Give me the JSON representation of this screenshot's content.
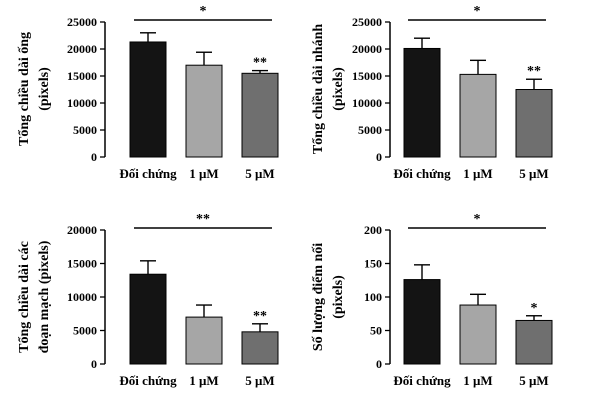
{
  "chart_data": [
    {
      "type": "bar",
      "title": "",
      "ylabel": [
        "Tổng chiều dài ống",
        "(pixels)"
      ],
      "categories": [
        "Đối chứng",
        "1 μM",
        "5 μM"
      ],
      "values": [
        21300,
        17000,
        15500
      ],
      "errors": [
        1700,
        2400,
        500
      ],
      "colors": [
        "#141414",
        "#a6a6a6",
        "#6f6f6f"
      ],
      "ylim": [
        0,
        25000
      ],
      "yticks": [
        0,
        5000,
        10000,
        15000,
        20000,
        25000
      ],
      "bar_annotations": [
        "",
        "",
        "**"
      ],
      "bracket": {
        "from": 0,
        "to": 2,
        "label": "*"
      },
      "grid": false
    },
    {
      "type": "bar",
      "title": "",
      "ylabel": [
        "Tổng chiều dài nhánh",
        "(pixels)"
      ],
      "categories": [
        "Đối chứng",
        "1 μM",
        "5 μM"
      ],
      "values": [
        20100,
        15300,
        12500
      ],
      "errors": [
        1900,
        2600,
        1900
      ],
      "colors": [
        "#141414",
        "#a6a6a6",
        "#6f6f6f"
      ],
      "ylim": [
        0,
        25000
      ],
      "yticks": [
        0,
        5000,
        10000,
        15000,
        20000,
        25000
      ],
      "bar_annotations": [
        "",
        "",
        "**"
      ],
      "bracket": {
        "from": 0,
        "to": 2,
        "label": "*"
      },
      "grid": false
    },
    {
      "type": "bar",
      "title": "",
      "ylabel": [
        "Tổng chiều dài các",
        "đoạn mạch (pixels)"
      ],
      "categories": [
        "Đối chứng",
        "1 μM",
        "5 μM"
      ],
      "values": [
        13400,
        7000,
        4800
      ],
      "errors": [
        2000,
        1800,
        1200
      ],
      "colors": [
        "#141414",
        "#a6a6a6",
        "#6f6f6f"
      ],
      "ylim": [
        0,
        20000
      ],
      "yticks": [
        0,
        5000,
        10000,
        15000,
        20000
      ],
      "bar_annotations": [
        "",
        "",
        "**"
      ],
      "bracket": {
        "from": 0,
        "to": 2,
        "label": "**"
      },
      "grid": false
    },
    {
      "type": "bar",
      "title": "",
      "ylabel": [
        "Số lượng điểm nối",
        "(pixels)"
      ],
      "categories": [
        "Đối chứng",
        "1 μM",
        "5 μM"
      ],
      "values": [
        126,
        88,
        65
      ],
      "errors": [
        22,
        16,
        7
      ],
      "colors": [
        "#141414",
        "#a6a6a6",
        "#6f6f6f"
      ],
      "ylim": [
        0,
        200
      ],
      "yticks": [
        0,
        50,
        100,
        150,
        200
      ],
      "bar_annotations": [
        "",
        "",
        "*"
      ],
      "bracket": {
        "from": 0,
        "to": 2,
        "label": "*"
      },
      "grid": false
    }
  ]
}
